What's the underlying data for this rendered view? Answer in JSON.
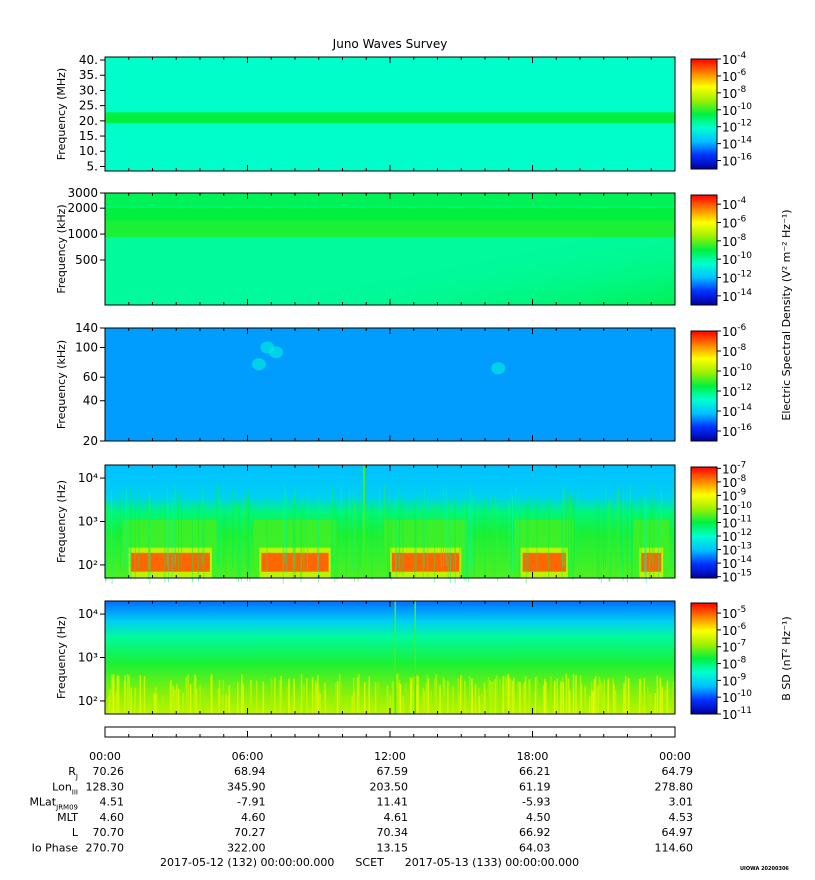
{
  "title": "Juno Waves Survey",
  "footer": {
    "start": "2017-05-12 (132) 00:00:00.000",
    "scet": "SCET",
    "end": "2017-05-13 (133) 00:00:00.000",
    "stamp": "UIOWA 20200306"
  },
  "colors": {
    "ramp": [
      "#0000a0",
      "#0030ff",
      "#00c0ff",
      "#00ffd0",
      "#00f040",
      "#a0f000",
      "#ffff00",
      "#ff8000",
      "#ff0000"
    ]
  },
  "chart_data": [
    {
      "type": "heatmap",
      "name": "panel-1",
      "ylabel": "Frequency (MHz)",
      "yscale": "linear",
      "ylim": [
        3.5,
        41
      ],
      "yticks": [
        "40.",
        "35.",
        "30.",
        "25.",
        "20.",
        "15.",
        "10.",
        "5."
      ],
      "ytick_values": [
        40,
        35,
        30,
        25,
        20,
        15,
        10,
        5
      ],
      "colorbar": {
        "exponents": [
          "-4",
          "-6",
          "-8",
          "-10",
          "-12",
          "-14",
          "-16"
        ],
        "range": [
          -17,
          -4
        ],
        "label": ""
      },
      "background_level": 0.38,
      "bands": [
        {
          "y": 21,
          "level": 0.5,
          "halfwidth": 0.6
        }
      ]
    },
    {
      "type": "heatmap",
      "name": "panel-2",
      "ylabel": "Frequency (kHz)",
      "yscale": "log",
      "ylim": [
        150,
        3000
      ],
      "yticks": [
        "3000",
        "2000",
        "1000",
        "500"
      ],
      "ytick_values": [
        3000,
        2000,
        1000,
        500
      ],
      "colorbar": {
        "exponents": [
          "-4",
          "-6",
          "-8",
          "-10",
          "-12",
          "-14"
        ],
        "range": [
          -15,
          -3
        ],
        "label": "Electric Spectral Density (V² m⁻² Hz⁻¹)"
      },
      "background_level": 0.42,
      "bands": [
        {
          "y": 2500,
          "level": 0.48,
          "halfwidth": 0.02
        },
        {
          "y": 1700,
          "level": 0.5,
          "halfwidth": 0.02
        },
        {
          "y": 1150,
          "level": 0.52,
          "halfwidth": 0.025
        }
      ]
    },
    {
      "type": "heatmap",
      "name": "panel-3",
      "ylabel": "Frequency (kHz)",
      "yscale": "log",
      "ylim": [
        20,
        140
      ],
      "yticks": [
        "140",
        "100",
        "60",
        "40",
        "20"
      ],
      "ytick_values": [
        140,
        100,
        60,
        40,
        20
      ],
      "colorbar": {
        "exponents": [
          "-6",
          "-8",
          "-10",
          "-12",
          "-14",
          "-16"
        ],
        "range": [
          -17,
          -6
        ],
        "label": ""
      },
      "background_level": 0.22,
      "bands": []
    },
    {
      "type": "heatmap",
      "name": "panel-4",
      "ylabel": "Frequency (Hz)",
      "yscale": "log",
      "ylim": [
        50,
        20000
      ],
      "yticks": [
        "10⁴",
        "10³",
        "10²"
      ],
      "ytick_values": [
        10000,
        1000,
        100
      ],
      "colorbar": {
        "exponents": [
          "-7",
          "-8",
          "-9",
          "-10",
          "-11",
          "-12",
          "-13",
          "-14",
          "-15"
        ],
        "range": [
          -15.1,
          -6.9
        ],
        "label": ""
      },
      "background_level": 0.25,
      "bands": [],
      "red_intervals_hours": [
        [
          1.0,
          4.5
        ],
        [
          6.5,
          9.5
        ],
        [
          12.0,
          15.0
        ],
        [
          17.5,
          19.5
        ],
        [
          22.5,
          23.5
        ]
      ]
    },
    {
      "type": "heatmap",
      "name": "panel-5",
      "ylabel": "Frequency (Hz)",
      "yscale": "log",
      "ylim": [
        50,
        20000
      ],
      "yticks": [
        "10⁴",
        "10³",
        "10²"
      ],
      "ytick_values": [
        10000,
        1000,
        100
      ],
      "colorbar": {
        "exponents": [
          "-5",
          "-6",
          "-7",
          "-8",
          "-9",
          "-10",
          "-11"
        ],
        "range": [
          -11,
          -4.4
        ],
        "label": "B SD (nT² Hz⁻¹)"
      },
      "background_level": 0.2,
      "bands": []
    }
  ],
  "ephemeris": {
    "times": [
      "00:00",
      "06:00",
      "12:00",
      "18:00",
      "00:00"
    ],
    "rows": [
      {
        "label": "R",
        "sub": "J",
        "values": [
          "70.26",
          "68.94",
          "67.59",
          "66.21",
          "64.79"
        ]
      },
      {
        "label": "Lon",
        "sub": "III",
        "values": [
          "128.30",
          "345.90",
          "203.50",
          "61.19",
          "278.80"
        ]
      },
      {
        "label": "MLat",
        "sub": "JRM09",
        "values": [
          "4.51",
          "-7.91",
          "11.41",
          "-5.93",
          "3.01"
        ]
      },
      {
        "label": "MLT",
        "sub": "",
        "values": [
          "4.60",
          "4.60",
          "4.61",
          "4.50",
          "4.53"
        ]
      },
      {
        "label": "L",
        "sub": "",
        "values": [
          "70.70",
          "70.27",
          "70.34",
          "66.92",
          "64.97"
        ]
      },
      {
        "label": "Io Phase",
        "sub": "",
        "values": [
          "270.70",
          "322.00",
          "13.15",
          "64.03",
          "114.60"
        ]
      }
    ]
  }
}
